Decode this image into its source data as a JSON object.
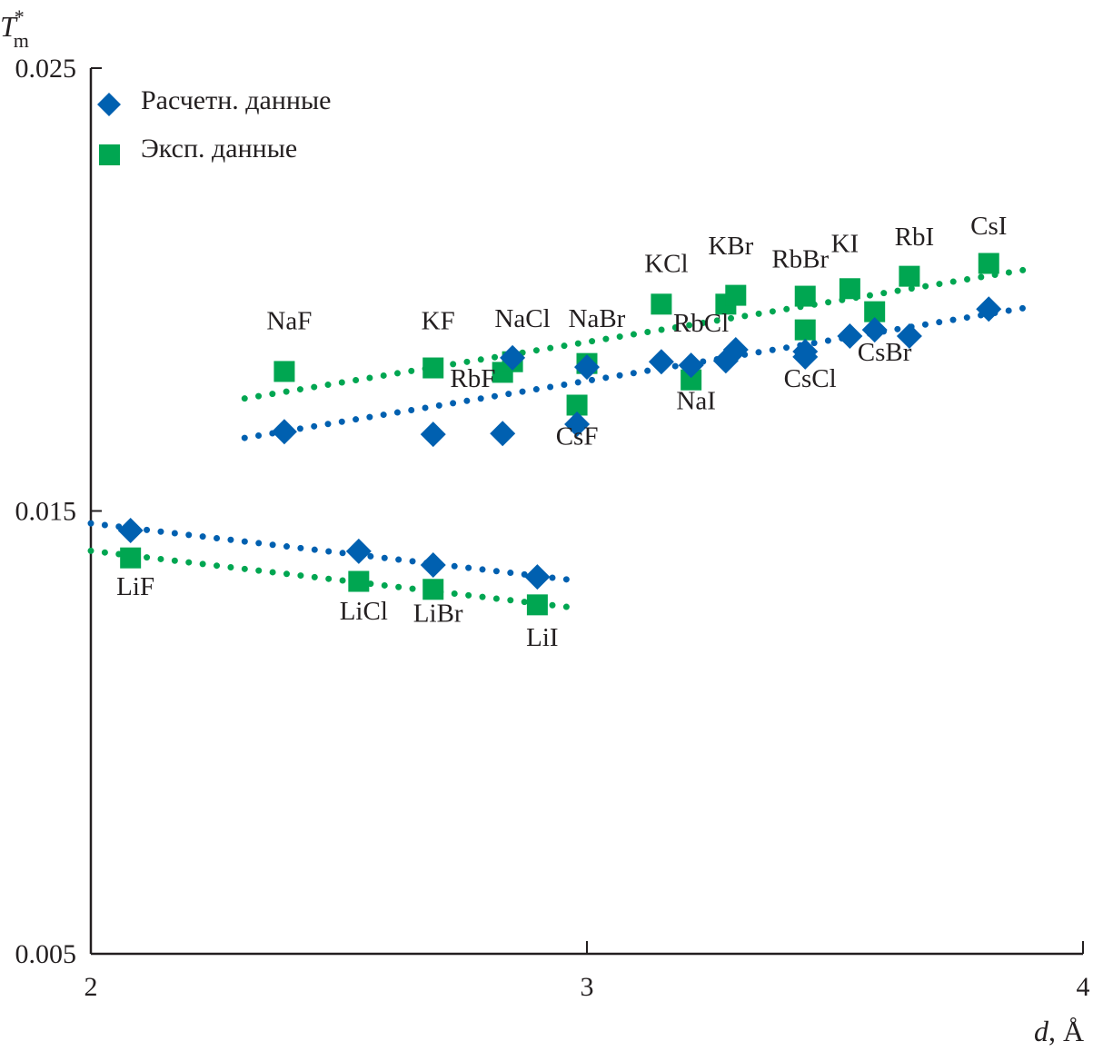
{
  "chart_data": {
    "type": "scatter",
    "title": "",
    "xlabel": "d, Å",
    "xlabel_var": "d",
    "xlabel_unit": "Å",
    "ylabel": "T*m",
    "ylabel_main": "T",
    "ylabel_sub": "m",
    "ylabel_sup": "*",
    "xlim": [
      2,
      4
    ],
    "ylim": [
      0.005,
      0.025
    ],
    "x_ticks": [
      2,
      3,
      4
    ],
    "x_tick_labels": [
      "2",
      "3",
      "4"
    ],
    "y_ticks": [
      0.005,
      0.015,
      0.025
    ],
    "y_tick_labels": [
      "0.005",
      "0.015",
      "0.025"
    ],
    "grid": false,
    "legend_position": "top-left",
    "series": [
      {
        "name": "Расчетн. данные",
        "marker": "diamond",
        "color": "#0060b0",
        "points": [
          {
            "label": "LiF",
            "x": 2.08,
            "y": 0.01456
          },
          {
            "label": "LiCl",
            "x": 2.54,
            "y": 0.01409
          },
          {
            "label": "LiBr",
            "x": 2.69,
            "y": 0.01378
          },
          {
            "label": "LiI",
            "x": 2.9,
            "y": 0.01351
          },
          {
            "label": "NaF",
            "x": 2.39,
            "y": 0.01679
          },
          {
            "label": "KF",
            "x": 2.69,
            "y": 0.01673
          },
          {
            "label": "RbF",
            "x": 2.83,
            "y": 0.01675
          },
          {
            "label": "NaCl",
            "x": 2.85,
            "y": 0.01846
          },
          {
            "label": "CsF",
            "x": 2.98,
            "y": 0.01696
          },
          {
            "label": "NaBr",
            "x": 3.0,
            "y": 0.01825
          },
          {
            "label": "KCl",
            "x": 3.15,
            "y": 0.01837
          },
          {
            "label": "NaI",
            "x": 3.21,
            "y": 0.01829
          },
          {
            "label": "RbCl",
            "x": 3.28,
            "y": 0.01839
          },
          {
            "label": "KBr",
            "x": 3.3,
            "y": 0.01864
          },
          {
            "label": "CsCl",
            "x": 3.44,
            "y": 0.01848
          },
          {
            "label": "RbBr",
            "x": 3.44,
            "y": 0.0186
          },
          {
            "label": "KI",
            "x": 3.53,
            "y": 0.01895
          },
          {
            "label": "CsBr",
            "x": 3.58,
            "y": 0.01909
          },
          {
            "label": "RbI",
            "x": 3.65,
            "y": 0.01895
          },
          {
            "label": "CsI",
            "x": 3.81,
            "y": 0.01956
          }
        ],
        "trendlines": [
          {
            "group": "upper",
            "x": [
              2.31,
              3.88
            ],
            "y": [
              0.01665,
              0.01958
            ]
          },
          {
            "group": "Li",
            "x": [
              2.0,
              2.97
            ],
            "y": [
              0.01472,
              0.01344
            ]
          }
        ]
      },
      {
        "name": "Эксп. данные",
        "marker": "square",
        "color": "#00a651",
        "points": [
          {
            "label": "LiF",
            "x": 2.08,
            "y": 0.01394
          },
          {
            "label": "LiCl",
            "x": 2.54,
            "y": 0.01341
          },
          {
            "label": "LiBr",
            "x": 2.69,
            "y": 0.01323
          },
          {
            "label": "LiI",
            "x": 2.9,
            "y": 0.01288
          },
          {
            "label": "NaF",
            "x": 2.39,
            "y": 0.01815
          },
          {
            "label": "KF",
            "x": 2.69,
            "y": 0.01823
          },
          {
            "label": "RbF",
            "x": 2.83,
            "y": 0.01813
          },
          {
            "label": "NaCl",
            "x": 2.85,
            "y": 0.01837
          },
          {
            "label": "CsF",
            "x": 2.98,
            "y": 0.01739
          },
          {
            "label": "NaBr",
            "x": 3.0,
            "y": 0.01833
          },
          {
            "label": "KCl",
            "x": 3.15,
            "y": 0.01967
          },
          {
            "label": "NaI",
            "x": 3.21,
            "y": 0.01796
          },
          {
            "label": "RbCl",
            "x": 3.28,
            "y": 0.01967
          },
          {
            "label": "KBr",
            "x": 3.3,
            "y": 0.01987
          },
          {
            "label": "CsCl",
            "x": 3.44,
            "y": 0.01909
          },
          {
            "label": "RbBr",
            "x": 3.44,
            "y": 0.01985
          },
          {
            "label": "KI",
            "x": 3.53,
            "y": 0.02002
          },
          {
            "label": "CsBr",
            "x": 3.58,
            "y": 0.0195
          },
          {
            "label": "RbI",
            "x": 3.65,
            "y": 0.0203
          },
          {
            "label": "CsI",
            "x": 3.81,
            "y": 0.02059
          }
        ],
        "trendlines": [
          {
            "group": "upper",
            "x": [
              2.31,
              3.88
            ],
            "y": [
              0.01754,
              0.02044
            ]
          },
          {
            "group": "Li",
            "x": [
              2.0,
              2.97
            ],
            "y": [
              0.0141,
              0.01282
            ]
          }
        ]
      }
    ],
    "point_labels": [
      {
        "text": "NaF",
        "x": 2.4,
        "y": 0.0191
      },
      {
        "text": "KF",
        "x": 2.7,
        "y": 0.0191
      },
      {
        "text": "NaCl",
        "x": 2.87,
        "y": 0.01915
      },
      {
        "text": "NaBr",
        "x": 3.02,
        "y": 0.01915
      },
      {
        "text": "RbF",
        "x": 2.77,
        "y": 0.0178
      },
      {
        "text": "CsF",
        "x": 2.98,
        "y": 0.0165
      },
      {
        "text": "KCl",
        "x": 3.16,
        "y": 0.0204
      },
      {
        "text": "KBr",
        "x": 3.29,
        "y": 0.0208
      },
      {
        "text": "RbCl",
        "x": 3.23,
        "y": 0.01905
      },
      {
        "text": "NaI",
        "x": 3.22,
        "y": 0.0173
      },
      {
        "text": "RbBr",
        "x": 3.43,
        "y": 0.0205
      },
      {
        "text": "KI",
        "x": 3.52,
        "y": 0.02085
      },
      {
        "text": "RbI",
        "x": 3.66,
        "y": 0.021
      },
      {
        "text": "CsI",
        "x": 3.81,
        "y": 0.02125
      },
      {
        "text": "CsCl",
        "x": 3.45,
        "y": 0.0178
      },
      {
        "text": "CsBr",
        "x": 3.6,
        "y": 0.0184
      },
      {
        "text": "LiF",
        "x": 2.09,
        "y": 0.0131
      },
      {
        "text": "LiCl",
        "x": 2.55,
        "y": 0.01255
      },
      {
        "text": "LiBr",
        "x": 2.7,
        "y": 0.0125
      },
      {
        "text": "LiI",
        "x": 2.91,
        "y": 0.01195
      }
    ]
  }
}
